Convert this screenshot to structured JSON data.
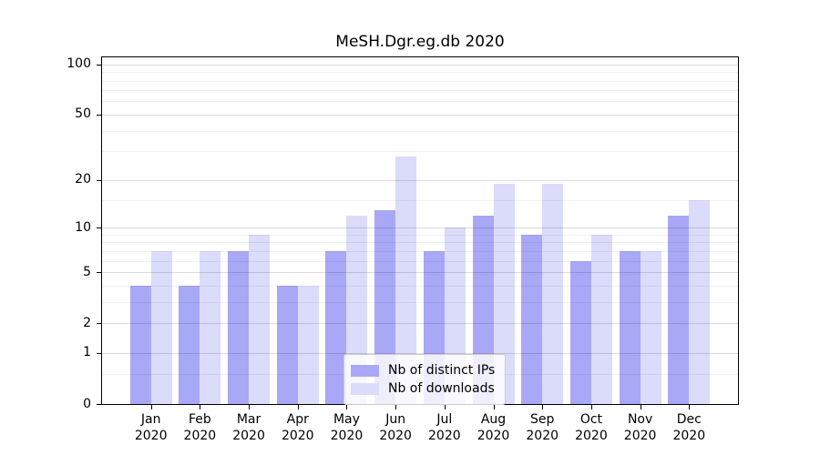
{
  "title": "MeSH.Dgr.eg.db 2020",
  "chart_data": {
    "type": "bar",
    "title": "MeSH.Dgr.eg.db 2020",
    "categories": [
      "Jan 2020",
      "Feb 2020",
      "Mar 2020",
      "Apr 2020",
      "May 2020",
      "Jun 2020",
      "Jul 2020",
      "Aug 2020",
      "Sep 2020",
      "Oct 2020",
      "Nov 2020",
      "Dec 2020"
    ],
    "series": [
      {
        "name": "Nb of distinct IPs",
        "color": "#a8a8f6",
        "values": [
          4,
          4,
          7,
          4,
          7,
          13,
          7,
          12,
          9,
          6,
          7,
          12
        ]
      },
      {
        "name": "Nb of downloads",
        "color": "#dbdbfa",
        "values": [
          7,
          7,
          9,
          4,
          12,
          28,
          10,
          19,
          19,
          9,
          7,
          15
        ]
      }
    ],
    "xlabel": "",
    "ylabel": "",
    "yscale": "log1p",
    "ylim": [
      0,
      110
    ],
    "yticks_major": [
      0,
      1,
      2,
      5,
      10,
      20,
      50,
      100
    ],
    "yticks_minor": [
      0.5,
      3,
      4,
      6,
      7,
      8,
      9,
      15,
      30,
      40,
      60,
      70,
      80,
      90
    ],
    "grid": true,
    "legend_position": "lower center"
  },
  "legend": {
    "items": [
      {
        "label": "Nb of distinct IPs"
      },
      {
        "label": "Nb of downloads"
      }
    ]
  }
}
